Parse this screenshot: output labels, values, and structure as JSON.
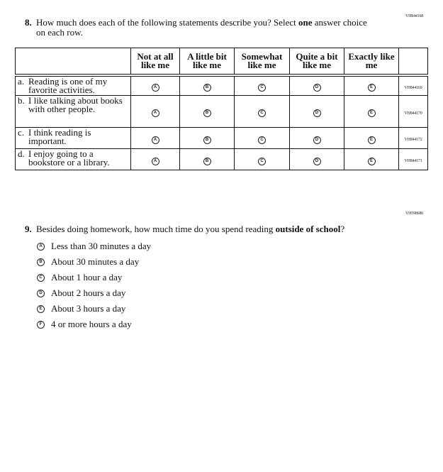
{
  "q8": {
    "id": "VH844168",
    "number": "8.",
    "text_before": "How much does each of the following statements describe you? Select ",
    "text_bold": "one",
    "text_after": " answer choice on each row.",
    "columns": [
      "Not at all like me",
      "A little bit like me",
      "Somewhat like me",
      "Quite a bit like me",
      "Exactly like me"
    ],
    "bubble_letters": [
      "A",
      "B",
      "C",
      "D",
      "E"
    ],
    "rows": [
      {
        "letter": "a.",
        "statement": "Reading is one of my favorite activities.",
        "id": "VH844169"
      },
      {
        "letter": "b.",
        "statement": "I like talking about books with other people.",
        "id": "VH844170"
      },
      {
        "letter": "c.",
        "statement": "I think reading is important.",
        "id": "VH844172"
      },
      {
        "letter": "d.",
        "statement": "I enjoy going to a bookstore or a library.",
        "id": "VH844171"
      }
    ]
  },
  "q9": {
    "id": "VH598686",
    "number": "9.",
    "text_before": "Besides doing homework, how much time do you spend reading ",
    "text_bold": "outside of school",
    "text_after": "?",
    "options": [
      {
        "letter": "A",
        "label": "Less than 30 minutes a day"
      },
      {
        "letter": "B",
        "label": "About 30 minutes a day"
      },
      {
        "letter": "C",
        "label": "About 1 hour a day"
      },
      {
        "letter": "D",
        "label": "About 2 hours a day"
      },
      {
        "letter": "E",
        "label": "About 3 hours a day"
      },
      {
        "letter": "F",
        "label": "4 or more hours a day"
      }
    ]
  }
}
